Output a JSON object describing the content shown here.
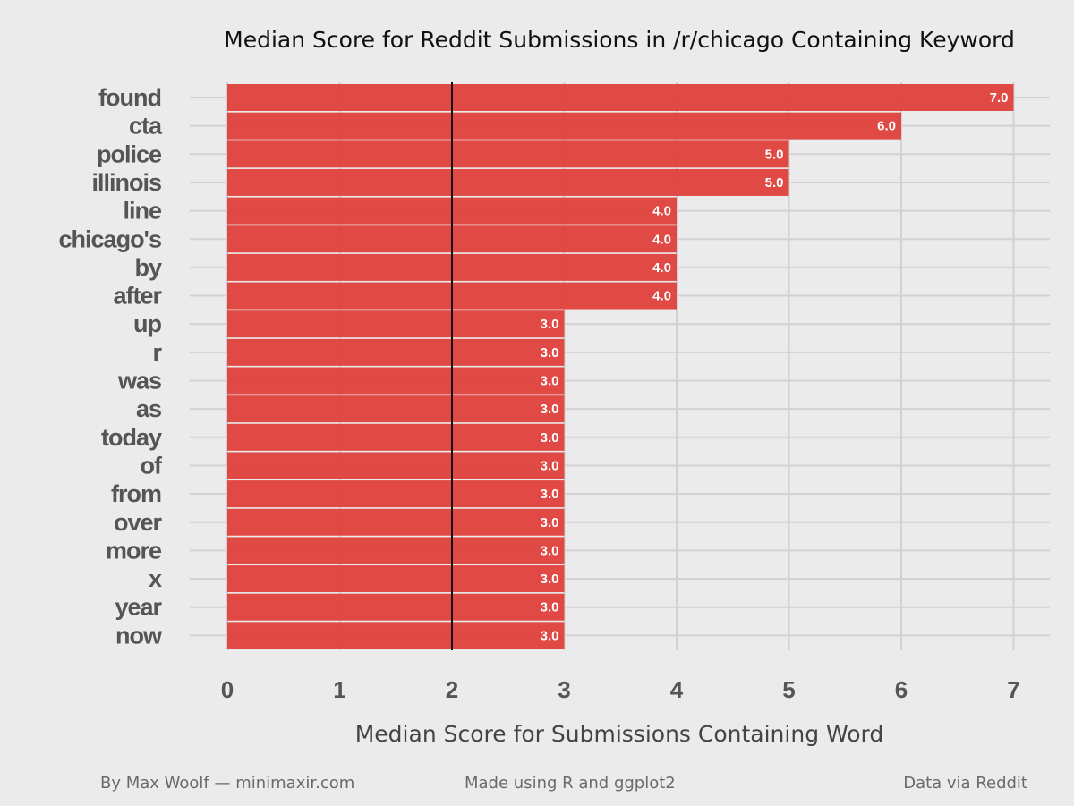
{
  "chart_data": {
    "type": "bar",
    "orientation": "horizontal",
    "title": "Median Score for Reddit Submissions in /r/chicago Containing Keyword",
    "xlabel": "Median Score for Submissions Containing Word",
    "ylabel": "",
    "xlim": [
      0,
      7
    ],
    "xticks": [
      "0",
      "1",
      "2",
      "3",
      "4",
      "5",
      "6",
      "7"
    ],
    "reference_line": 2,
    "bar_color": "#e0403b",
    "grid": true,
    "categories": [
      "found",
      "cta",
      "police",
      "illinois",
      "line",
      "chicago's",
      "by",
      "after",
      "up",
      "r",
      "was",
      "as",
      "today",
      "of",
      "from",
      "over",
      "more",
      "x",
      "year",
      "now"
    ],
    "values": [
      7.0,
      6.0,
      5.0,
      5.0,
      4.0,
      4.0,
      4.0,
      4.0,
      3.0,
      3.0,
      3.0,
      3.0,
      3.0,
      3.0,
      3.0,
      3.0,
      3.0,
      3.0,
      3.0,
      3.0
    ],
    "data_labels": [
      "7.0",
      "6.0",
      "5.0",
      "5.0",
      "4.0",
      "4.0",
      "4.0",
      "4.0",
      "3.0",
      "3.0",
      "3.0",
      "3.0",
      "3.0",
      "3.0",
      "3.0",
      "3.0",
      "3.0",
      "3.0",
      "3.0",
      "3.0"
    ]
  },
  "footer": {
    "left": "By Max Woolf — minimaxir.com",
    "center": "Made using R and ggplot2",
    "right": "Data via Reddit"
  }
}
